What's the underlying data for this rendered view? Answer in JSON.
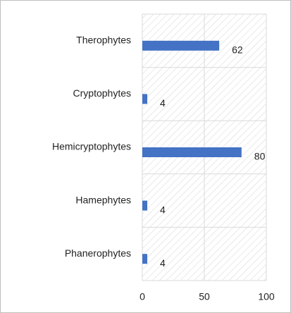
{
  "chart_data": {
    "type": "bar",
    "orientation": "horizontal",
    "categories": [
      "Therophytes",
      "Cryptophytes",
      "Hemicryptophytes",
      "Hamephytes",
      "Phanerophytes"
    ],
    "values": [
      62,
      4,
      80,
      4,
      4
    ],
    "color": "#4472c4",
    "xlim": [
      0,
      100
    ],
    "xticks": [
      0,
      50,
      100
    ],
    "grid": true
  }
}
